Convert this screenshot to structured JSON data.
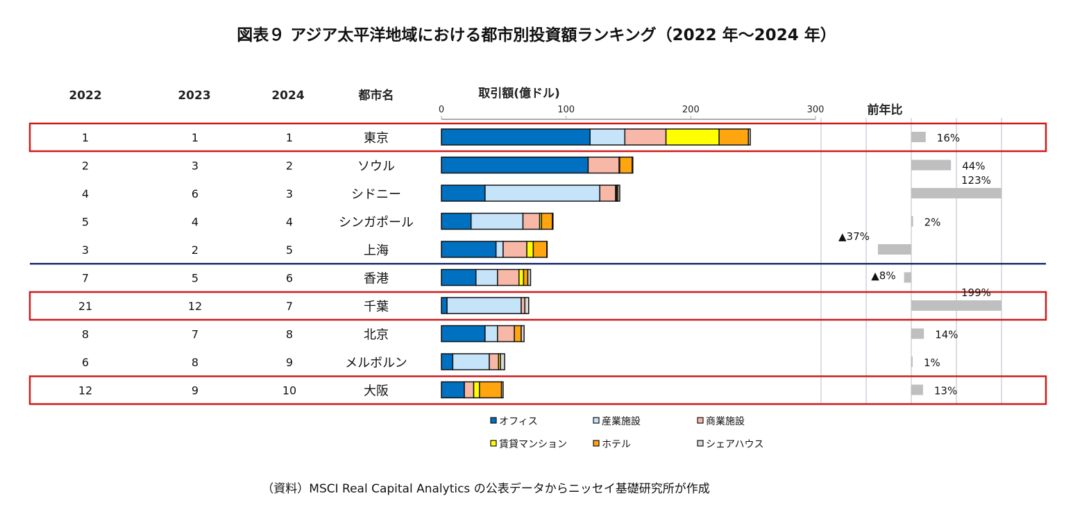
{
  "title": "図表９ アジア太平洋地域における都市別投資額ランキング（2022 年～2024 年）",
  "headers": {
    "y2022": "2022",
    "y2023": "2023",
    "y2024": "2024",
    "city": "都市名",
    "amount": "取引額(億ドル)",
    "yoy": "前年比"
  },
  "footer": "（資料）MSCI Real Capital Analytics の公表データからニッセイ基礎研究所が作成",
  "colors": {
    "office": "#0070C0",
    "industrial": "#C5E3F9",
    "retail": "#F8B8A8",
    "rental": "#FFFF00",
    "hotel": "#FFA50F",
    "share": "#D9D9D9",
    "highlight": "#D01A1A",
    "divider": "#1F3070",
    "yoy_bar": "#BFBFBF"
  },
  "chart_data": {
    "type": "bar",
    "orientation": "horizontal",
    "stacked": true,
    "xlim": [
      0,
      300
    ],
    "xticks": [
      "0",
      "100",
      "200",
      "300"
    ],
    "xlabel": "取引額(億ドル)",
    "series": [
      {
        "name": "オフィス",
        "key": "office",
        "values": [
          119.2,
          117.7,
          35.0,
          23.8,
          43.8,
          27.7,
          4.5,
          35.0,
          9.1,
          18.4
        ]
      },
      {
        "name": "産業施設",
        "key": "industrial",
        "values": [
          27.9,
          0,
          92.0,
          41.6,
          5.7,
          17.3,
          59.5,
          10.0,
          29.3,
          0
        ]
      },
      {
        "name": "商業施設",
        "key": "retail",
        "values": [
          33.0,
          24.8,
          12.7,
          13.4,
          19.0,
          17.2,
          2.9,
          13.5,
          7.4,
          7.5
        ]
      },
      {
        "name": "賃貸マンション",
        "key": "rental",
        "values": [
          42.6,
          0.5,
          0.8,
          1.5,
          5.2,
          3.7,
          0,
          0,
          1.5,
          4.6
        ]
      },
      {
        "name": "ホテル",
        "key": "hotel",
        "values": [
          23.5,
          10.0,
          1.0,
          8.7,
          10.8,
          3.4,
          0,
          5.5,
          0,
          17.7
        ]
      },
      {
        "name": "シェアハウス",
        "key": "share",
        "values": [
          1.5,
          0.5,
          1.5,
          0.5,
          0.3,
          2.2,
          3.1,
          2.3,
          3.4,
          1.3
        ]
      }
    ],
    "rows": [
      {
        "r2022": "1",
        "r2023": "1",
        "r2024": "1",
        "city": "東京",
        "yoy": 16,
        "yoy_label": "16%",
        "highlight": true
      },
      {
        "r2022": "2",
        "r2023": "3",
        "r2024": "2",
        "city": "ソウル",
        "yoy": 44,
        "yoy_label": "44%",
        "highlight": false
      },
      {
        "r2022": "4",
        "r2023": "6",
        "r2024": "3",
        "city": "シドニー",
        "yoy": 123,
        "yoy_label": "123%",
        "highlight": false
      },
      {
        "r2022": "5",
        "r2023": "4",
        "r2024": "4",
        "city": "シンガポール",
        "yoy": 2,
        "yoy_label": "2%",
        "highlight": false
      },
      {
        "r2022": "3",
        "r2023": "2",
        "r2024": "5",
        "city": "上海",
        "yoy": -37,
        "yoy_label": "▲37%",
        "highlight": false
      },
      {
        "r2022": "7",
        "r2023": "5",
        "r2024": "6",
        "city": "香港",
        "yoy": -8,
        "yoy_label": "▲8%",
        "highlight": false
      },
      {
        "r2022": "21",
        "r2023": "12",
        "r2024": "7",
        "city": "千葉",
        "yoy": 199,
        "yoy_label": "199%",
        "highlight": true
      },
      {
        "r2022": "8",
        "r2023": "7",
        "r2024": "8",
        "city": "北京",
        "yoy": 14,
        "yoy_label": "14%",
        "highlight": false
      },
      {
        "r2022": "6",
        "r2023": "8",
        "r2024": "9",
        "city": "メルボルン",
        "yoy": 1,
        "yoy_label": "1%",
        "highlight": false
      },
      {
        "r2022": "12",
        "r2023": "9",
        "r2024": "10",
        "city": "大阪",
        "yoy": 13,
        "yoy_label": "13%",
        "highlight": true
      }
    ],
    "yoy_xlim": [
      -100,
      100
    ],
    "legend_position": "bottom"
  }
}
